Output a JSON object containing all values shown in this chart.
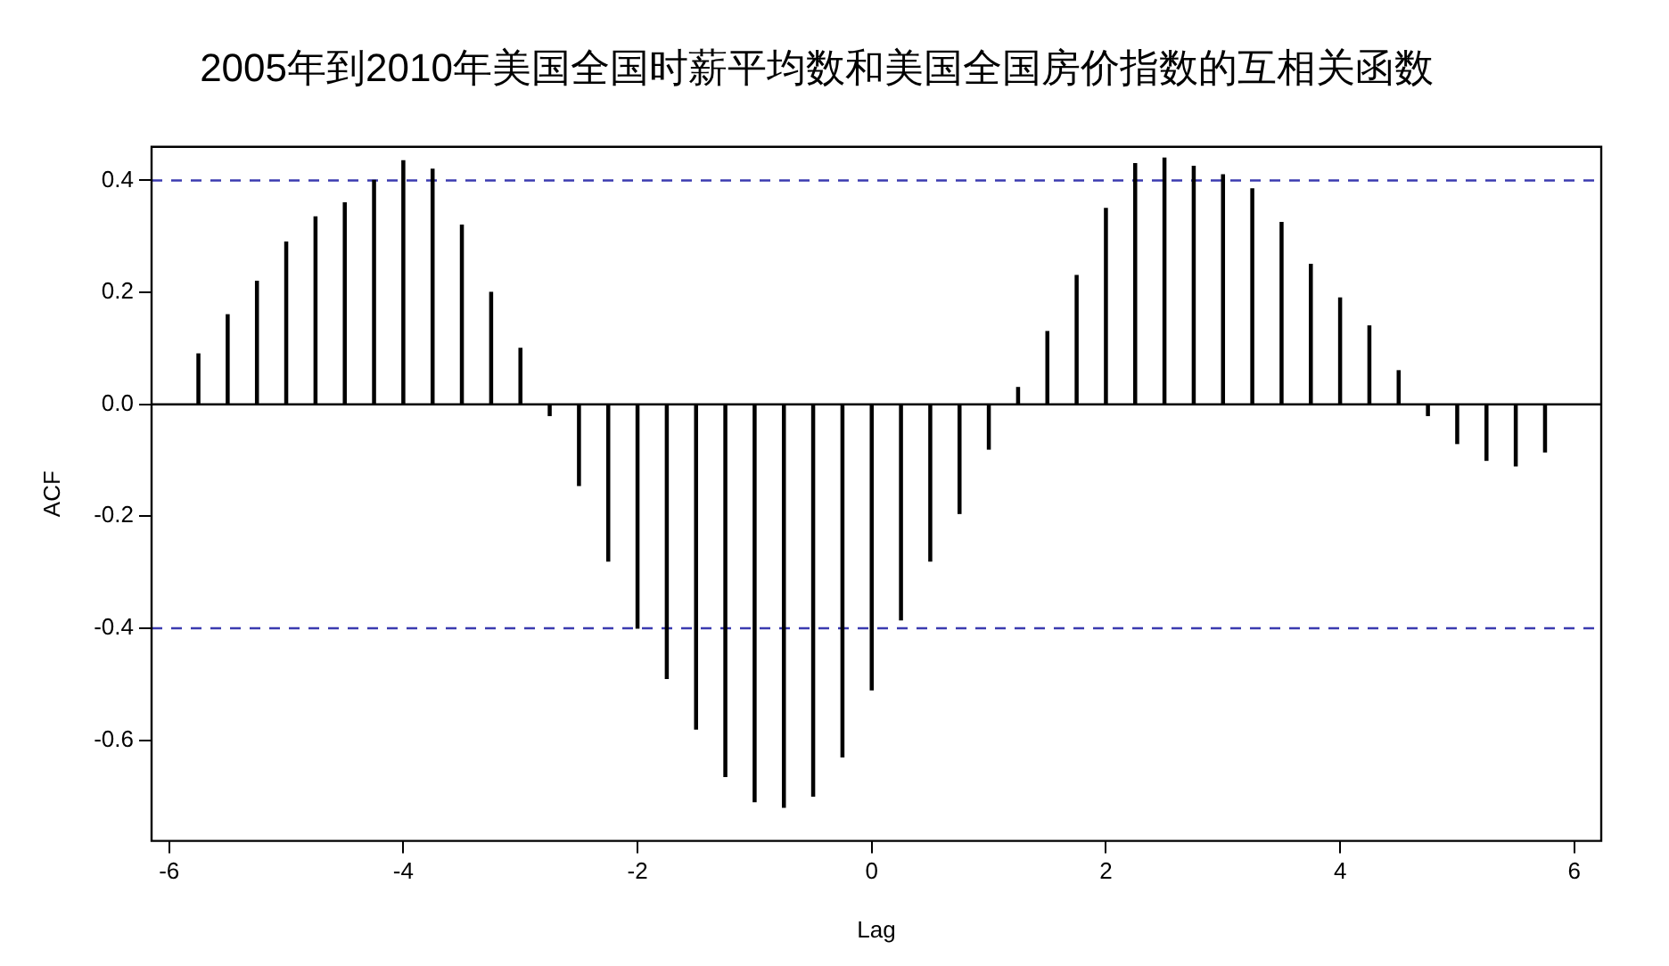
{
  "chart_data": {
    "type": "bar",
    "title": "2005年到2010年美国全国时薪平均数和美国全国房价指数的互相关函数",
    "xlabel": "Lag",
    "ylabel": "ACF",
    "x": [
      -5.75,
      -5.5,
      -5.25,
      -5,
      -4.75,
      -4.5,
      -4.25,
      -4,
      -3.75,
      -3.5,
      -3.25,
      -3,
      -2.75,
      -2.5,
      -2.25,
      -2,
      -1.75,
      -1.5,
      -1.25,
      -1,
      -0.75,
      -0.5,
      -0.25,
      0,
      0.25,
      0.5,
      0.75,
      1,
      1.25,
      1.5,
      1.75,
      2,
      2.25,
      2.5,
      2.75,
      3,
      3.25,
      3.5,
      3.75,
      4,
      4.25,
      4.5,
      4.75,
      5,
      5.25,
      5.5,
      5.75
    ],
    "values": [
      0.09,
      0.16,
      0.22,
      0.29,
      0.335,
      0.36,
      0.4,
      0.435,
      0.42,
      0.32,
      0.2,
      0.1,
      -0.02,
      -0.145,
      -0.28,
      -0.4,
      -0.49,
      -0.58,
      -0.665,
      -0.71,
      -0.72,
      -0.7,
      -0.63,
      -0.51,
      -0.385,
      -0.28,
      -0.195,
      -0.08,
      0.03,
      0.13,
      0.23,
      0.35,
      0.43,
      0.44,
      0.425,
      0.41,
      0.385,
      0.325,
      0.25,
      0.19,
      0.14,
      0.06,
      -0.02,
      -0.07,
      -0.1,
      -0.11,
      -0.085
    ],
    "color": "#000000",
    "xlim": [
      -6.15,
      6.23
    ],
    "xticks": [
      -6,
      -4,
      -2,
      0,
      2,
      4,
      6
    ],
    "ylim": [
      -0.78,
      0.46
    ],
    "yticks": [
      {
        "value": -0.6,
        "label": "-0.6"
      },
      {
        "value": -0.4,
        "label": "-0.4"
      },
      {
        "value": -0.2,
        "label": "-0.2"
      },
      {
        "value": 0,
        "label": "0.0"
      },
      {
        "value": 0.2,
        "label": "0.2"
      },
      {
        "value": 0.4,
        "label": "0.4"
      }
    ],
    "ref_lines": [
      {
        "axis": "y",
        "value": 0,
        "color": "#000000",
        "line_style": "solid"
      },
      {
        "axis": "y",
        "value": 0.4,
        "color": "#3b3bb0",
        "line_style": "dashed"
      },
      {
        "axis": "y",
        "value": -0.4,
        "color": "#3b3bb0",
        "line_style": "dashed"
      }
    ]
  }
}
